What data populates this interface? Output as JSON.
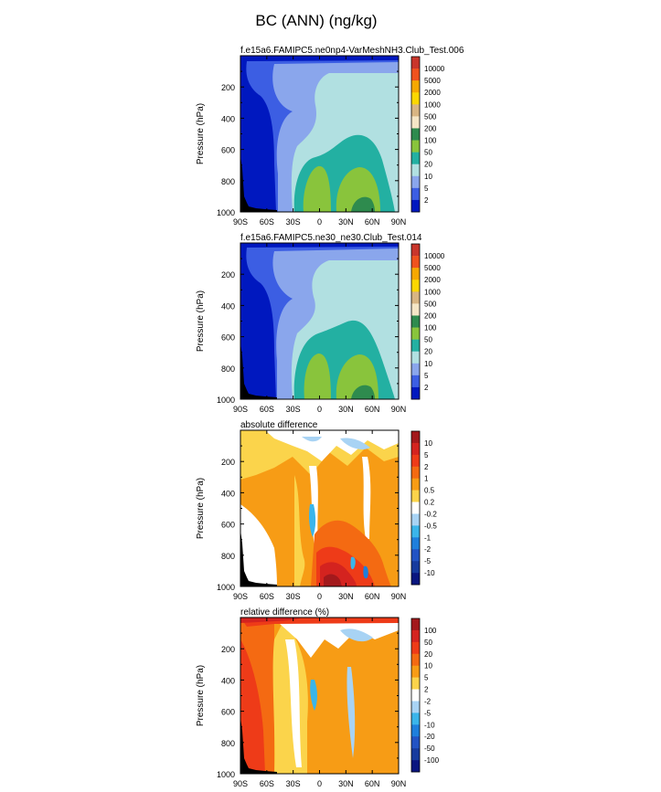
{
  "figure": {
    "title": "BC (ANN) (ng/kg)"
  },
  "chart_data": [
    {
      "type": "heatmap",
      "title": "f.e15a6.FAMIPC5.ne0np4-VarMeshNH3.Club_Test.006",
      "ylabel": "Pressure (hPa)",
      "xlabel": "",
      "x_ticks": [
        "90S",
        "60S",
        "30S",
        "0",
        "30N",
        "60N",
        "90N"
      ],
      "y_ticks": [
        "200",
        "400",
        "600",
        "800",
        "1000"
      ],
      "xlim": [
        -90,
        90
      ],
      "ylim": [
        1000,
        0
      ],
      "colorbar_labels": [
        "10000",
        "5000",
        "2000",
        "1000",
        "500",
        "200",
        "100",
        "50",
        "20",
        "10",
        "5",
        "2"
      ],
      "colorbar_colors": [
        "#c9362b",
        "#f0521d",
        "#f6a800",
        "#fbd700",
        "#d8b583",
        "#f5e6c6",
        "#2e8b4e",
        "#89c43c",
        "#23b0a2",
        "#b1e0e1",
        "#8aa6ec",
        "#3c5ee3",
        "#0018bf"
      ],
      "regions": [
        {
          "level": "<2",
          "color": "#0018bf",
          "extent": "southern polar band 90S-45S, surface to top"
        },
        {
          "level": "2-5",
          "color": "#3c5ee3",
          "extent": "upper troposphere band near top"
        },
        {
          "level": "5-10",
          "color": "#8aa6ec",
          "extent": "mid latitudes 45S-15S and upper levels"
        },
        {
          "level": "10-20",
          "color": "#b1e0e1",
          "extent": "tropics and northern hemisphere 200-1000 hPa"
        },
        {
          "level": "20-50",
          "color": "#23b0a2",
          "extent": "15S-60N below 500 hPa"
        },
        {
          "level": "50-100",
          "color": "#89c43c",
          "extent": "0-20N and 25N-55N below 700 hPa"
        },
        {
          "level": "100-200",
          "color": "#2e8b4e",
          "extent": "near 45N at surface"
        }
      ]
    },
    {
      "type": "heatmap",
      "title": "f.e15a6.FAMIPC5.ne30_ne30.Club_Test.014",
      "ylabel": "Pressure (hPa)",
      "xlabel": "",
      "x_ticks": [
        "90S",
        "60S",
        "30S",
        "0",
        "30N",
        "60N",
        "90N"
      ],
      "y_ticks": [
        "200",
        "400",
        "600",
        "800",
        "1000"
      ],
      "xlim": [
        -90,
        90
      ],
      "ylim": [
        1000,
        0
      ],
      "colorbar_labels": [
        "10000",
        "5000",
        "2000",
        "1000",
        "500",
        "200",
        "100",
        "50",
        "20",
        "10",
        "5",
        "2"
      ],
      "colorbar_colors": [
        "#c9362b",
        "#f0521d",
        "#f6a800",
        "#fbd700",
        "#d8b583",
        "#f5e6c6",
        "#2e8b4e",
        "#89c43c",
        "#23b0a2",
        "#b1e0e1",
        "#8aa6ec",
        "#3c5ee3",
        "#0018bf"
      ],
      "regions": [
        {
          "level": "<2",
          "color": "#0018bf",
          "extent": "southern polar band 90S-45S"
        },
        {
          "level": "5-10",
          "color": "#8aa6ec",
          "extent": "mid latitudes and upper levels"
        },
        {
          "level": "10-20",
          "color": "#b1e0e1",
          "extent": "tropics and northern hemisphere"
        },
        {
          "level": "20-50",
          "color": "#23b0a2",
          "extent": "0-60N below 550 hPa"
        },
        {
          "level": "50-100",
          "color": "#89c43c",
          "extent": "0-20N and 25N-55N below 700 hPa"
        },
        {
          "level": "100-200",
          "color": "#2e8b4e",
          "extent": "near 45N at surface"
        }
      ]
    },
    {
      "type": "heatmap",
      "title": "absolute difference",
      "ylabel": "Pressure (hPa)",
      "xlabel": "",
      "x_ticks": [
        "90S",
        "60S",
        "30S",
        "0",
        "30N",
        "60N",
        "90N"
      ],
      "y_ticks": [
        "200",
        "400",
        "600",
        "800",
        "1000"
      ],
      "xlim": [
        -90,
        90
      ],
      "ylim": [
        1000,
        0
      ],
      "colorbar_labels": [
        "10",
        "5",
        "2",
        "1",
        "0.5",
        "0.2",
        "-0.2",
        "-0.5",
        "-1",
        "-2",
        "-5",
        "-10"
      ],
      "colorbar_colors": [
        "#a3191c",
        "#d4231f",
        "#ee3b18",
        "#f46a12",
        "#f79c15",
        "#fbd44b",
        "#ffffff",
        "#a8d3f4",
        "#3ab5ea",
        "#1e7fdc",
        "#2253c4",
        "#163a9e",
        "#0a1680"
      ]
    },
    {
      "type": "heatmap",
      "title": "relative difference (%)",
      "ylabel": "Pressure (hPa)",
      "xlabel": "",
      "x_ticks": [
        "90S",
        "60S",
        "30S",
        "0",
        "30N",
        "60N",
        "90N"
      ],
      "y_ticks": [
        "200",
        "400",
        "600",
        "800",
        "1000"
      ],
      "xlim": [
        -90,
        90
      ],
      "ylim": [
        1000,
        0
      ],
      "colorbar_labels": [
        "100",
        "50",
        "20",
        "10",
        "5",
        "2",
        "-2",
        "-5",
        "-10",
        "-20",
        "-50",
        "-100"
      ],
      "colorbar_colors": [
        "#a3191c",
        "#d4231f",
        "#ee3b18",
        "#f46a12",
        "#f79c15",
        "#fbd44b",
        "#ffffff",
        "#a8d3f4",
        "#3ab5ea",
        "#1e7fdc",
        "#2253c4",
        "#163a9e",
        "#0a1680"
      ]
    }
  ]
}
